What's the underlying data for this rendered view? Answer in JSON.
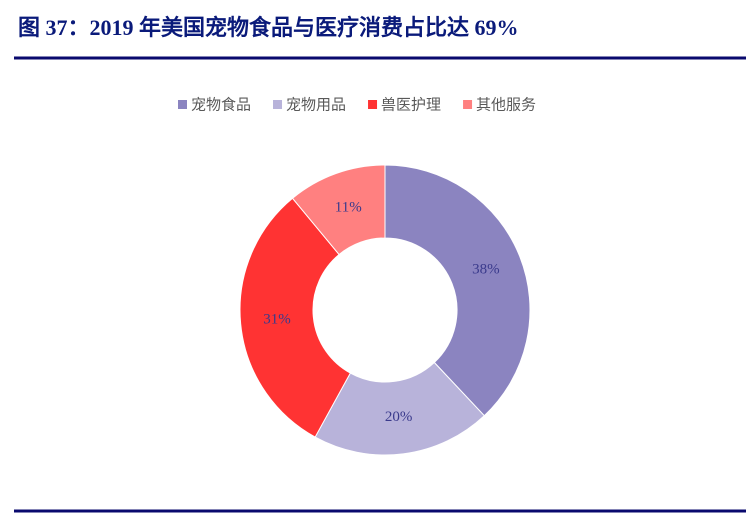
{
  "chart_data": {
    "type": "donut",
    "title": "图 37：2019 年美国宠物食品与医疗消费占比达 69%",
    "categories": [
      "宠物食品",
      "宠物用品",
      "兽医护理",
      "其他服务"
    ],
    "values": [
      38,
      20,
      31,
      11
    ],
    "value_labels": [
      "38%",
      "20%",
      "31%",
      "11%"
    ],
    "colors": [
      "#8b84c0",
      "#b8b3da",
      "#ff3333",
      "#ff8080"
    ],
    "legend": "top"
  }
}
